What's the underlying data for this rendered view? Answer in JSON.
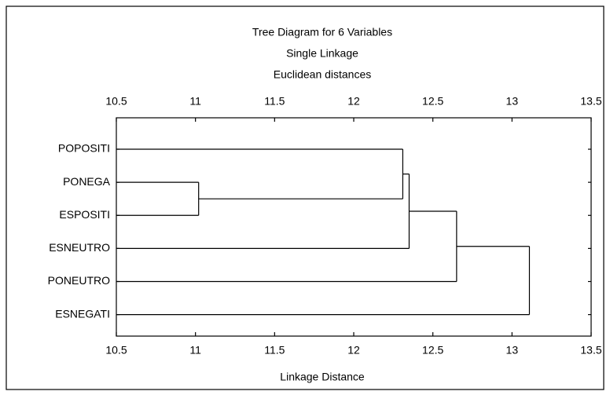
{
  "chart_data": {
    "type": "dendrogram",
    "title": "Tree Diagram for 6 Variables",
    "subtitle": [
      "Single Linkage",
      "Euclidean distances"
    ],
    "xlabel": "Linkage Distance",
    "leaves": [
      "POPOSITI",
      "PONEGA",
      "ESPOSITI",
      "ESNEUTRO",
      "PONEUTRO",
      "ESNEGATI"
    ],
    "merges": [
      {
        "items": [
          1,
          2
        ],
        "height": 11.02
      },
      {
        "items": [
          0,
          6
        ],
        "height": 12.31
      },
      {
        "items": [
          7,
          3
        ],
        "height": 12.35
      },
      {
        "items": [
          8,
          4
        ],
        "height": 12.65
      },
      {
        "items": [
          9,
          5
        ],
        "height": 13.11
      }
    ],
    "color": "#000000",
    "xlim": [
      10.5,
      13.5
    ],
    "xticks": [
      10.5,
      11,
      11.5,
      12,
      12.5,
      13,
      13.5
    ]
  }
}
